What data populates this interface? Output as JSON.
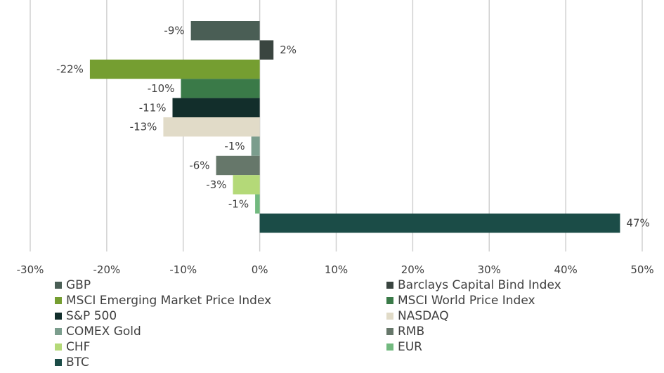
{
  "chart_data": {
    "type": "bar",
    "orientation": "horizontal",
    "title": "",
    "xlabel": "",
    "ylabel": "",
    "xlim": [
      -30,
      50
    ],
    "x_ticks": [
      "-30%",
      "-20%",
      "-10%",
      "0%",
      "10%",
      "20%",
      "30%",
      "40%",
      "50%"
    ],
    "x_tick_values": [
      -30,
      -20,
      -10,
      0,
      10,
      20,
      30,
      40,
      50
    ],
    "grid": "vertical",
    "legend_position": "bottom",
    "series": [
      {
        "name": "GBP",
        "value": -9.0,
        "label": "-9%",
        "color": "#4a5e55"
      },
      {
        "name": "Barclays Capital Bind Index",
        "value": 1.8,
        "label": "2%",
        "color": "#3a4540"
      },
      {
        "name": "MSCI Emerging Market Price Index",
        "value": -22.2,
        "label": "-22%",
        "color": "#759e31"
      },
      {
        "name": "MSCI World Price Index",
        "value": -10.3,
        "label": "-10%",
        "color": "#3a7a48"
      },
      {
        "name": "S&P 500",
        "value": -11.4,
        "label": "-11%",
        "color": "#122e2b"
      },
      {
        "name": "NASDAQ",
        "value": -12.6,
        "label": "-13%",
        "color": "#e1dbc8"
      },
      {
        "name": "COMEX Gold",
        "value": -1.1,
        "label": "-1%",
        "color": "#7b9d8d"
      },
      {
        "name": "RMB",
        "value": -5.7,
        "label": "-6%",
        "color": "#66776a"
      },
      {
        "name": "CHF",
        "value": -3.5,
        "label": "-3%",
        "color": "#b4d978"
      },
      {
        "name": "EUR",
        "value": -0.6,
        "label": "-1%",
        "color": "#72b97f"
      },
      {
        "name": "BTC",
        "value": 47.1,
        "label": "47%",
        "color": "#1b4c47"
      }
    ],
    "gridline_color": "#d0d0d0"
  }
}
